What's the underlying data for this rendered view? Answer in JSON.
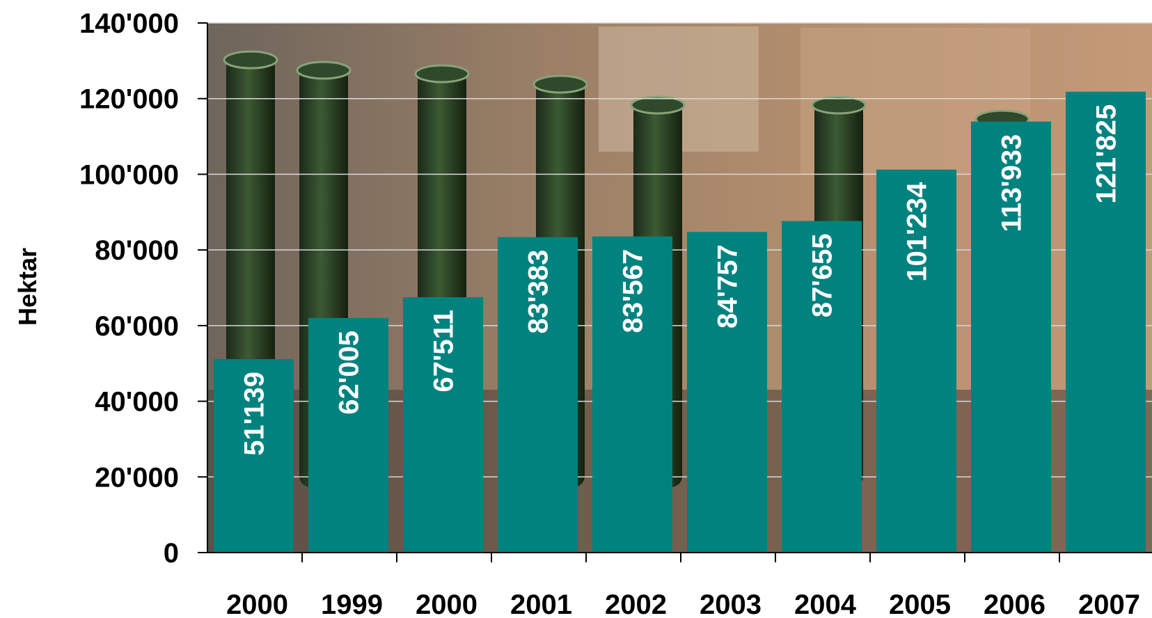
{
  "chart_data": {
    "type": "bar",
    "title": "",
    "xlabel": "",
    "ylabel": "Hektar",
    "categories": [
      "2000",
      "1999",
      "2000",
      "2001",
      "2002",
      "2003",
      "2004",
      "2005",
      "2006",
      "2007"
    ],
    "values": [
      51139,
      62005,
      67511,
      83383,
      83567,
      84757,
      87655,
      101234,
      113933,
      121825
    ],
    "value_labels": [
      "51'139",
      "62'005",
      "67'511",
      "83'383",
      "83'567",
      "84'757",
      "87'655",
      "101'234",
      "113'933",
      "121'825"
    ],
    "ylim": [
      0,
      140000
    ],
    "yticks": [
      0,
      20000,
      40000,
      60000,
      80000,
      100000,
      120000,
      140000
    ],
    "ytick_labels": [
      "0",
      "20'000",
      "40'000",
      "60'000",
      "80'000",
      "100'000",
      "120'000",
      "140'000"
    ],
    "grid": true,
    "background": "photo of green wine bottles in a wooden crate",
    "colors": {
      "bar": "#00827F",
      "grid": "#d9d9d9",
      "label": "#ffffff"
    }
  }
}
